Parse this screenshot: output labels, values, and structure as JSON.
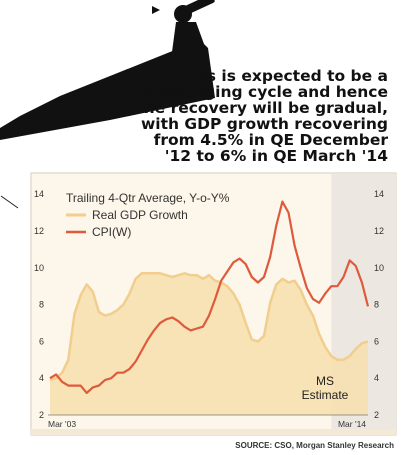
{
  "callout": {
    "lines": [
      "This is expected to be a",
      "challenging cycle and hence",
      "the recovery will be gradual,",
      "with GDP growth recovering",
      "from 4.5% in QE December",
      "'12 to 6% in QE March '14"
    ]
  },
  "source": "SOURCE: CSO, Morgan Stanley Research",
  "chart_data": {
    "type": "line",
    "title": "Trailing 4-Qtr Average, Y-o-Y%",
    "x_tick_labels": [
      "Mar '03",
      "Mar '14"
    ],
    "y_ticks": [
      2,
      4,
      6,
      8,
      10,
      12,
      14
    ],
    "ylim": [
      2,
      14.5
    ],
    "grid": false,
    "legend_position": "top-left",
    "shaded_region_label": [
      "MS",
      "Estimate"
    ],
    "series": [
      {
        "name": "Real GDP Growth",
        "style": "area",
        "color": "#f2ce8e",
        "fill": "#f7dfad",
        "values": [
          3.9,
          4.0,
          4.3,
          5.0,
          7.5,
          8.5,
          9.1,
          8.7,
          7.6,
          7.4,
          7.5,
          7.7,
          8.0,
          8.6,
          9.4,
          9.7,
          9.7,
          9.7,
          9.7,
          9.6,
          9.5,
          9.6,
          9.7,
          9.6,
          9.6,
          9.4,
          9.6,
          9.3,
          9.2,
          9.0,
          8.6,
          8.0,
          7.0,
          6.1,
          6.0,
          6.3,
          8.1,
          9.1,
          9.4,
          9.2,
          9.3,
          8.8,
          8.0,
          7.4,
          6.4,
          5.7,
          5.2,
          5.0,
          5.0,
          5.2,
          5.6,
          5.9,
          6.0
        ]
      },
      {
        "name": "CPI(W)",
        "style": "line",
        "color": "#de5a3c",
        "values": [
          4.0,
          4.2,
          3.8,
          3.6,
          3.6,
          3.6,
          3.2,
          3.5,
          3.6,
          3.9,
          4.0,
          4.3,
          4.3,
          4.5,
          4.9,
          5.5,
          6.1,
          6.6,
          7.0,
          7.2,
          7.3,
          7.1,
          6.8,
          6.6,
          6.7,
          6.8,
          7.4,
          8.3,
          9.3,
          9.8,
          10.3,
          10.5,
          10.2,
          9.5,
          9.2,
          9.5,
          10.6,
          12.3,
          13.6,
          13.0,
          11.2,
          10.0,
          8.9,
          8.3,
          8.1,
          8.6,
          9.0,
          9.0,
          9.5,
          10.4,
          10.1,
          9.2,
          7.9
        ]
      }
    ],
    "forecast_start_index": 46
  }
}
